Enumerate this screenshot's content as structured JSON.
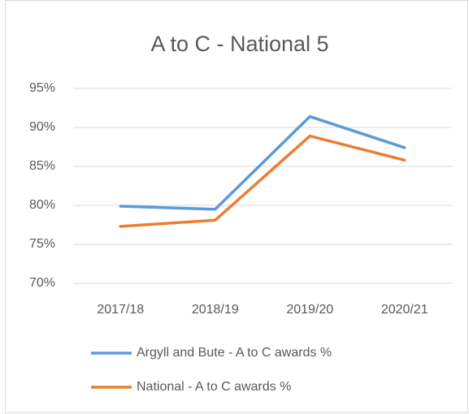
{
  "chart_data": {
    "type": "line",
    "title": "A to C - National 5",
    "categories": [
      "2017/18",
      "2018/19",
      "2019/20",
      "2020/21"
    ],
    "series": [
      {
        "name": "Argyll and Bute - A to C awards %",
        "color": "#5b9bd5",
        "values": [
          79.9,
          79.5,
          91.4,
          87.4
        ]
      },
      {
        "name": "National - A to C awards %",
        "color": "#ed7d31",
        "values": [
          77.3,
          78.1,
          88.9,
          85.8
        ]
      }
    ],
    "ylim": [
      70,
      95
    ],
    "yticks": [
      {
        "value": 70,
        "label": "70%"
      },
      {
        "value": 75,
        "label": "75%"
      },
      {
        "value": 80,
        "label": "80%"
      },
      {
        "value": 85,
        "label": "85%"
      },
      {
        "value": 90,
        "label": "90%"
      },
      {
        "value": 95,
        "label": "95%"
      }
    ],
    "grid": true,
    "legend": "bottom"
  }
}
